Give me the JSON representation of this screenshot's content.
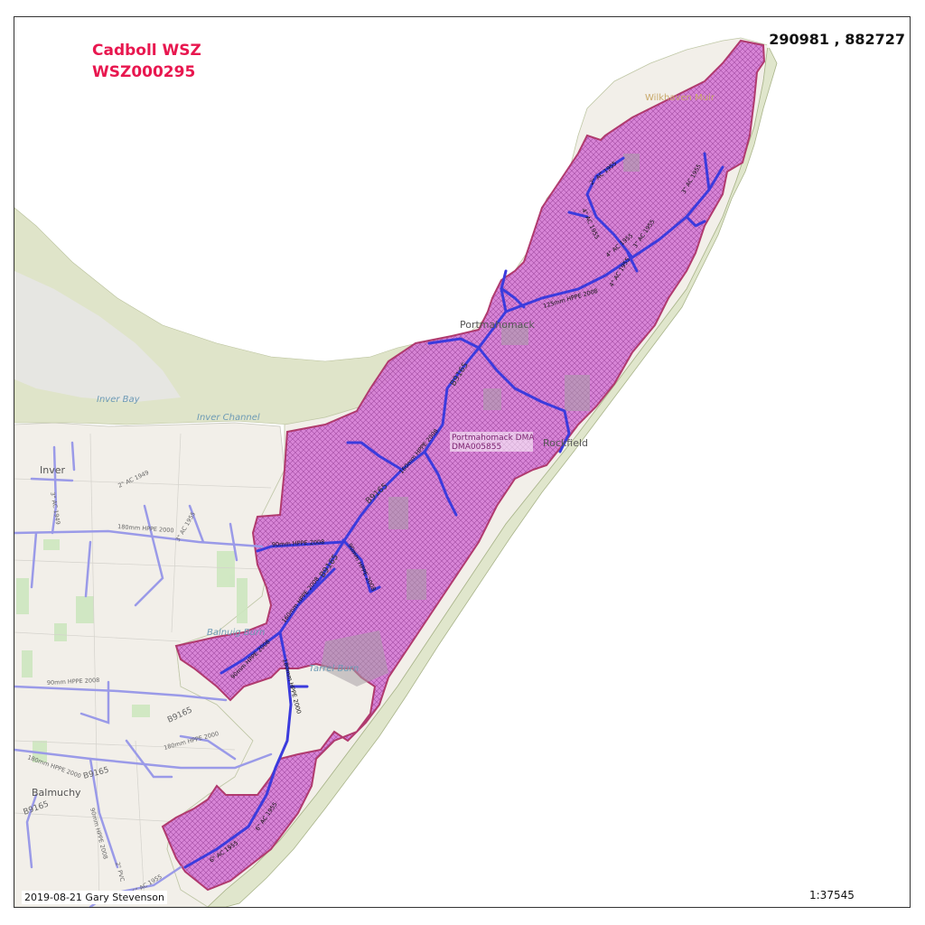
{
  "zone": {
    "name": "Cadboll WSZ",
    "code": "WSZ000295"
  },
  "coordinates": "290981 , 882727",
  "footer": {
    "credit": "2019-08-21 Gary Stevenson"
  },
  "scale": "1:37545",
  "places": {
    "wilkhaven": "Wilkhaven Muir",
    "portmahomack": "Portmahomack",
    "rockfield": "Rockfield",
    "inver": "Inver",
    "inver_bay": "Inver Bay",
    "inver_channel": "Inver Channel",
    "balnuig_burn": "Balnuig Burn",
    "tarrel_burn": "Tarrel Burn",
    "balmuchy": "Balmuchy"
  },
  "dma": {
    "line1": "Portmahomack DMA",
    "line2": "DMA005855"
  },
  "roads": {
    "b9165": "B9165"
  },
  "pipes": {
    "hppe125": "125mm HPPE 2008",
    "hppe160": "160mm HPPE 2008",
    "hppe90": "90mm HPPE 2008",
    "hppe180": "180mm HPPE 2000",
    "ac4_1955": "4\" AC 1955",
    "ac3_1955": "3\" AC 1955",
    "ac2_1955": "2\" AC 1955",
    "ac6_1955": "6\" AC 1955",
    "ac2_1949": "2\" AC 1949",
    "ac3_1949": "3\" AC 1949",
    "pvc2": "2\" PVC"
  },
  "colors": {
    "zone_fill": "#cc66cc",
    "zone_outline": "#b03a6e",
    "main_pipe": "#3b3bdd",
    "other_pipe": "#9a9ae8",
    "land": "#f2efe9",
    "sand": "#dfe4c9",
    "title": "#e8174f"
  }
}
